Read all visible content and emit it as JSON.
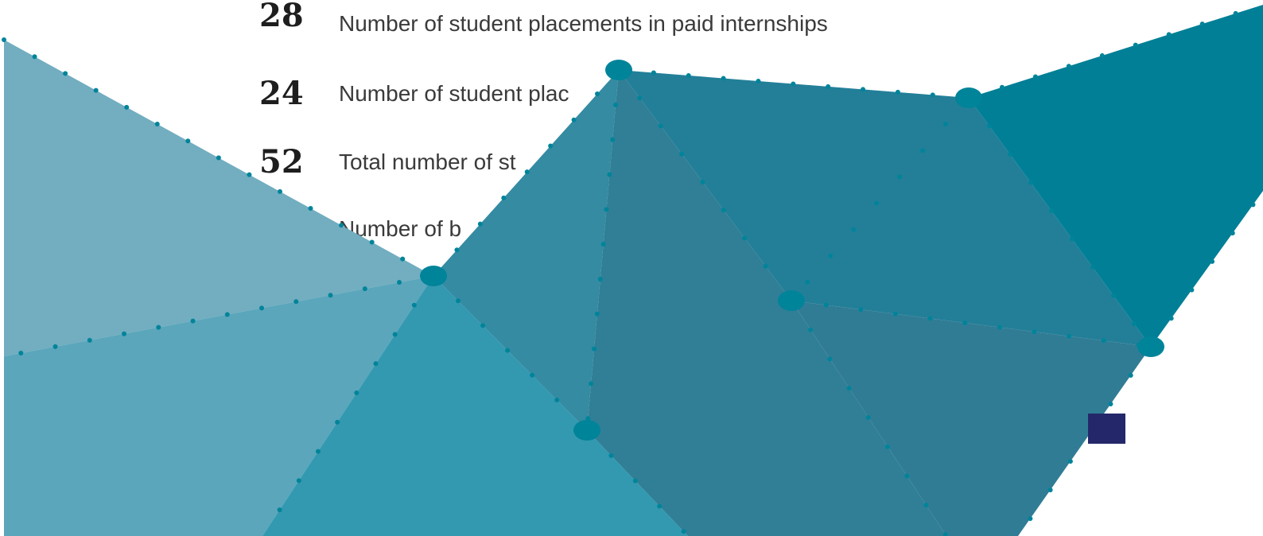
{
  "stats": [
    {
      "number": "28",
      "label": "Number of student placements in paid internships"
    },
    {
      "number": "24",
      "label": "Number of student plac"
    },
    {
      "number": "52",
      "label": "Total number of st"
    },
    {
      "label": "Number of b"
    }
  ]
}
